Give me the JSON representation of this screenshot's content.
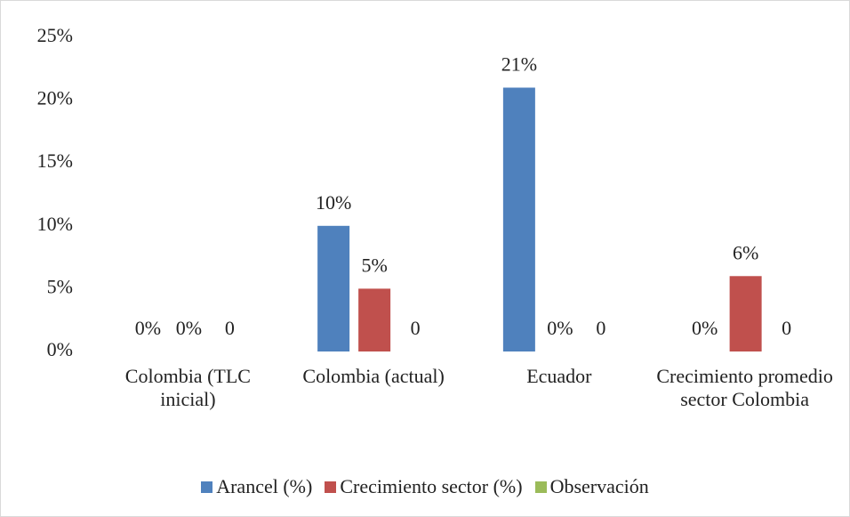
{
  "chart_data": {
    "type": "bar",
    "categories": [
      "Colombia (TLC inicial)",
      "Colombia (actual)",
      "Ecuador",
      "Crecimiento promedio sector Colombia"
    ],
    "series": [
      {
        "name": "Arancel (%)",
        "color": "#4f81bd",
        "values": [
          0,
          10,
          21,
          0
        ],
        "value_labels": [
          "0%",
          "10%",
          "21%",
          "0%"
        ]
      },
      {
        "name": "Crecimiento sector (%)",
        "color": "#c0504d",
        "values": [
          0,
          5,
          0,
          6
        ],
        "value_labels": [
          "0%",
          "5%",
          "0%",
          "6%"
        ]
      },
      {
        "name": "Observación",
        "color": "#9bbb59",
        "values": [
          0,
          0,
          0,
          0
        ]
      }
    ],
    "ylim": [
      0,
      25
    ],
    "yticks": [
      {
        "value": 0,
        "label": "0%"
      },
      {
        "value": 5,
        "label": "5%"
      },
      {
        "value": 10,
        "label": "10%"
      },
      {
        "value": 15,
        "label": "15%"
      },
      {
        "value": 20,
        "label": "20%"
      },
      {
        "value": 25,
        "label": "25%"
      }
    ],
    "grid": false,
    "legend": "bottom"
  }
}
